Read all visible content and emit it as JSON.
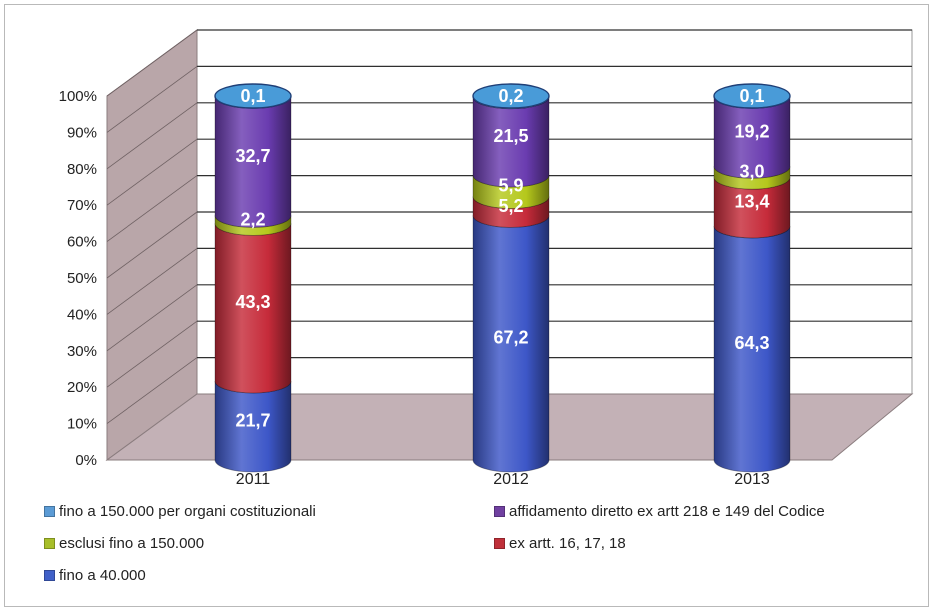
{
  "chart_data": {
    "type": "bar",
    "stacked": true,
    "style": "3d-cylinder",
    "categories": [
      "2011",
      "2012",
      "2013"
    ],
    "y_ticks": [
      "0%",
      "10%",
      "20%",
      "30%",
      "40%",
      "50%",
      "60%",
      "70%",
      "80%",
      "90%",
      "100%"
    ],
    "ylim": [
      0,
      100
    ],
    "grid": true,
    "legend_position": "bottom",
    "series": [
      {
        "name": "fino a 40.000",
        "color": "#3d57c8",
        "values": [
          21.7,
          67.2,
          64.3
        ],
        "labels": [
          "21,7",
          "67,2",
          "64,3"
        ]
      },
      {
        "name": "ex artt. 16, 17, 18",
        "color": "#c62b3a",
        "values": [
          43.3,
          5.2,
          13.4
        ],
        "labels": [
          "43,3",
          "5,2",
          "13,4"
        ]
      },
      {
        "name": "esclusi fino a 150.000",
        "color": "#b5c81c",
        "values": [
          2.2,
          5.9,
          3.0
        ],
        "labels": [
          "2,2",
          "5,9",
          "3,0"
        ]
      },
      {
        "name": "affidamento diretto ex artt 218 e 149 del Codice",
        "color": "#6a3cb0",
        "values": [
          32.7,
          21.5,
          19.2
        ],
        "labels": [
          "32,7",
          "21,5",
          "19,2"
        ]
      },
      {
        "name": "fino a 150.000 per organi costituzionali",
        "color": "#3f96d6",
        "values": [
          0.1,
          0.2,
          0.1
        ],
        "labels": [
          "0,1",
          "0,2",
          "0,1"
        ]
      }
    ]
  },
  "legend": {
    "items": [
      {
        "name": "fino a 150.000 per organi costituzionali",
        "color": "#5b9bd5"
      },
      {
        "name": "affidamento diretto ex artt 218 e 149 del Codice",
        "color": "#7040a0"
      },
      {
        "name": "esclusi fino a 150.000",
        "color": "#a8bf2a"
      },
      {
        "name": "ex artt. 16, 17, 18",
        "color": "#c0303a"
      },
      {
        "name": "fino a 40.000",
        "color": "#4060c8"
      }
    ]
  }
}
